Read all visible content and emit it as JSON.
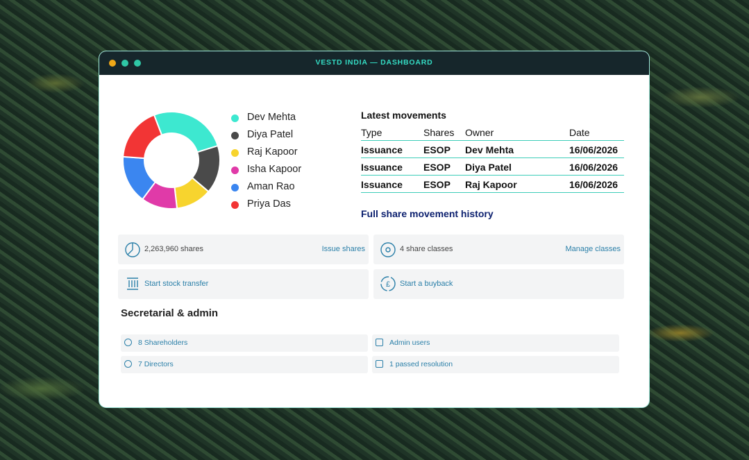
{
  "window_title": "VESTD INDIA — DASHBOARD",
  "chart_data": {
    "type": "pie",
    "categories": [
      "Dev Mehta",
      "Diya Patel",
      "Raj Kapoor",
      "Isha Kapoor",
      "Aman Rao",
      "Priya Das"
    ],
    "values": [
      26,
      16,
      12,
      12,
      16,
      18
    ],
    "colors": [
      "#3de8d0",
      "#4a4a4a",
      "#f7d42e",
      "#e03aa8",
      "#3b86f0",
      "#f23535"
    ]
  },
  "movements": {
    "title": "Latest movements",
    "columns": [
      "Type",
      "Shares",
      "Owner",
      "Date"
    ],
    "rows": [
      [
        "Issuance",
        "ESOP",
        "Dev Mehta",
        "16/06/2026"
      ],
      [
        "Issuance",
        "ESOP",
        "Diya Patel",
        "16/06/2026"
      ],
      [
        "Issuance",
        "ESOP",
        "Raj Kapoor",
        "16/06/2026"
      ]
    ],
    "link": "Full share movement history"
  },
  "cards": [
    {
      "text": "2,263,960 shares",
      "action": "Issue shares"
    },
    {
      "text": "4 share classes",
      "action": "Manage classes"
    },
    {
      "action": "Start stock transfer"
    },
    {
      "action": "Start a buyback"
    }
  ],
  "secretarial": {
    "title": "Secretarial & admin",
    "items": [
      "8 Shareholders",
      "Admin users",
      "7 Directors",
      "1 passed resolution"
    ]
  }
}
